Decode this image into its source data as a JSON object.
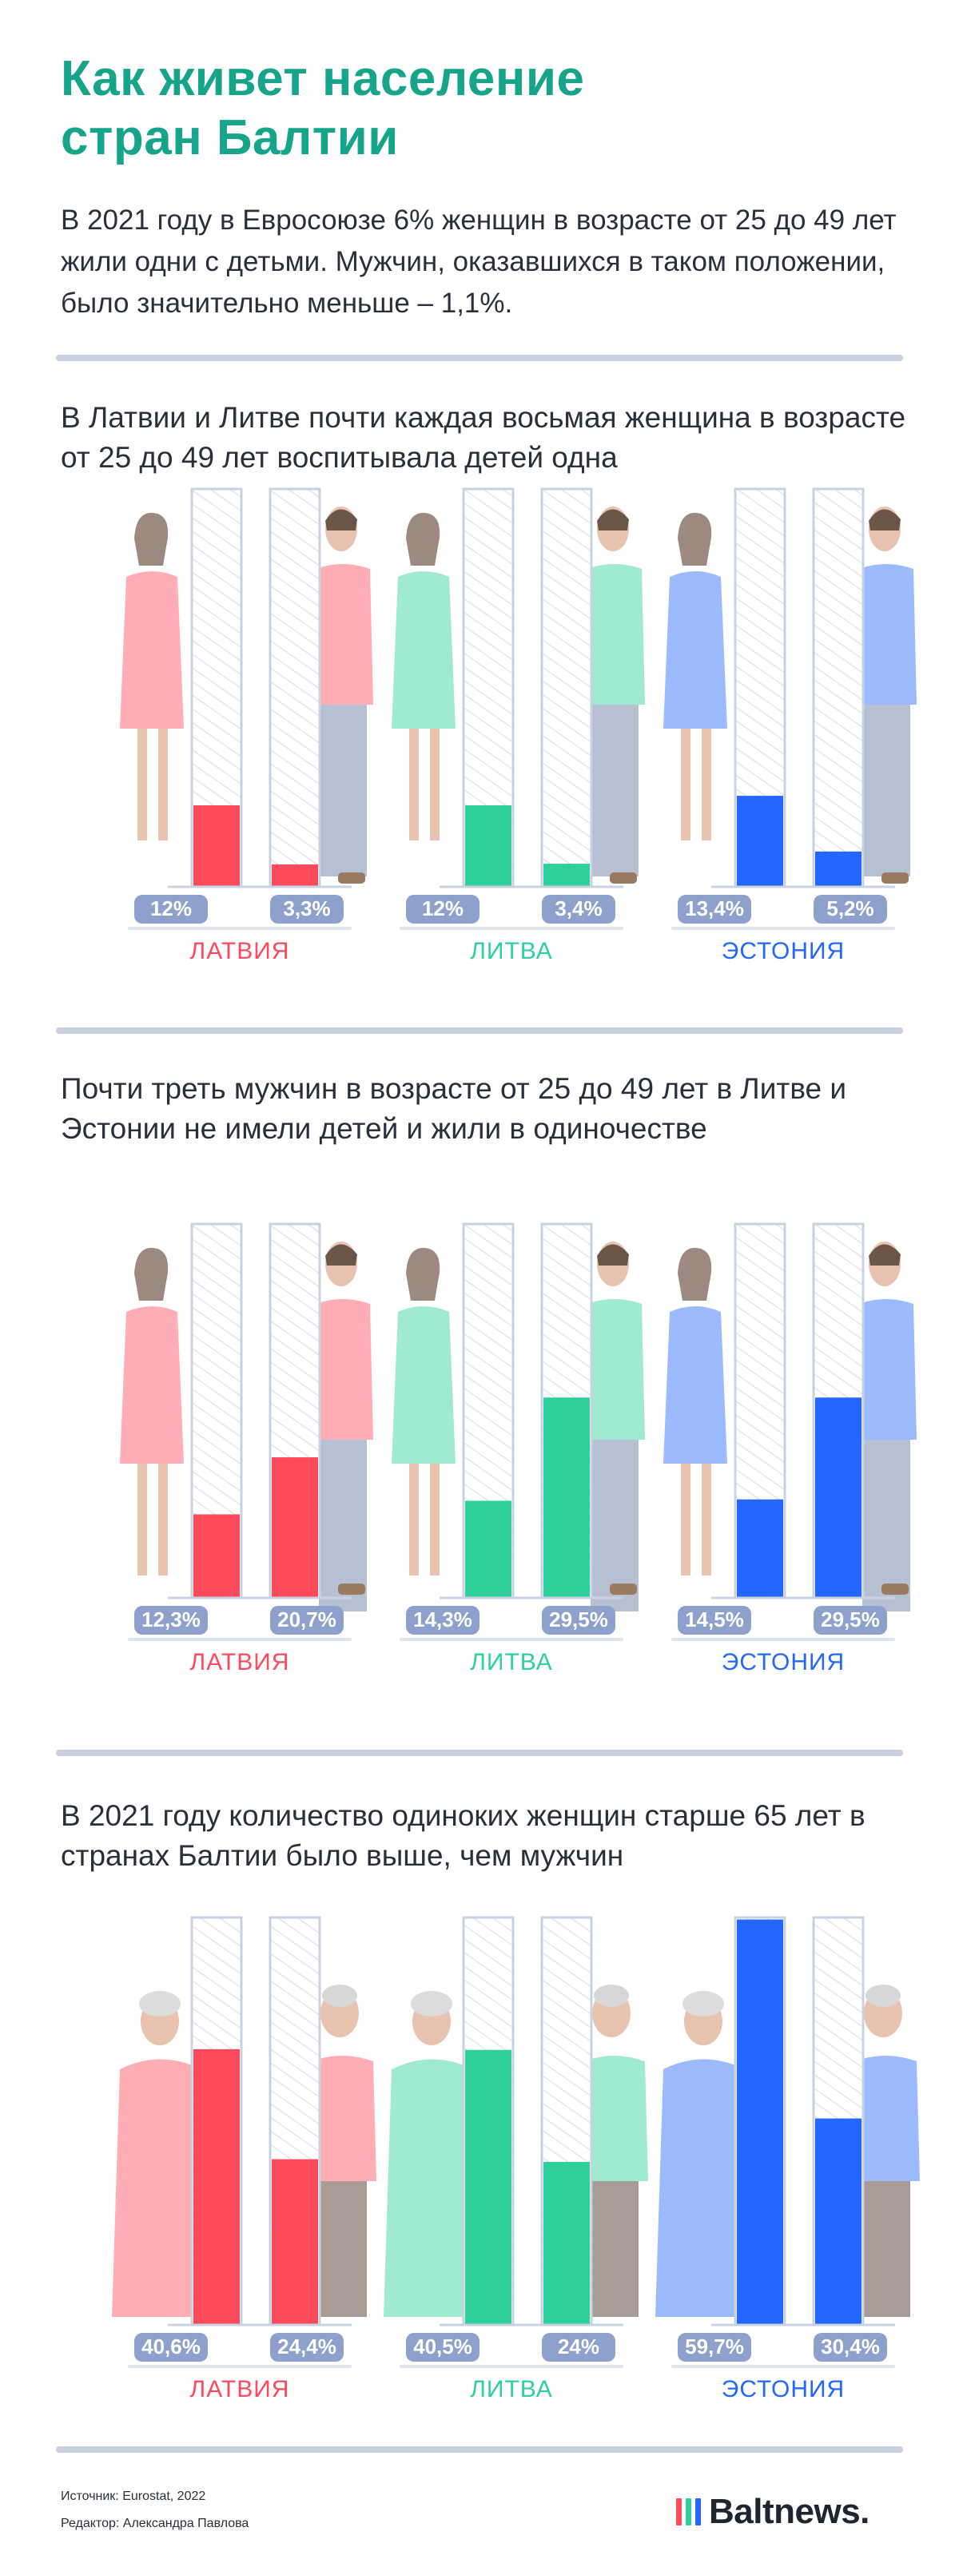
{
  "header": {
    "title_line1": "Как живет население",
    "title_line2": "стран Балтии",
    "intro": "В 2021 году в Евросоюзе 6% женщин в возрасте от 25 до 49 лет жили одни с детьми. Мужчин, оказавшихся в таком положении, было значительно меньше – 1,1%."
  },
  "colors": {
    "latvia": "#ff4a5c",
    "lithuania": "#2fd19a",
    "estonia": "#2367ff",
    "accent_title": "#16a58a",
    "label_pill": "#8da1cc"
  },
  "sections": [
    {
      "title": "В Латвии и Литве почти каждая восьмая женщина в возрасте от 25 до 49 лет воспитывала детей одна",
      "countries": [
        "ЛАТВИЯ",
        "ЛИТВА",
        "ЭСТОНИЯ"
      ],
      "value_labels": [
        [
          "12%",
          "3,3%"
        ],
        [
          "12%",
          "3,4%"
        ],
        [
          "13,4%",
          "5,2%"
        ]
      ]
    },
    {
      "title": "Почти треть мужчин в возрасте от 25 до 49 лет в Литве и Эстонии не имели детей и жили в одиночестве",
      "countries": [
        "ЛАТВИЯ",
        "ЛИТВА",
        "ЭСТОНИЯ"
      ],
      "value_labels": [
        [
          "12,3%",
          "20,7%"
        ],
        [
          "14,3%",
          "29,5%"
        ],
        [
          "14,5%",
          "29,5%"
        ]
      ]
    },
    {
      "title": "В 2021 году количество одиноких женщин старше 65 лет в странах Балтии было выше, чем мужчин",
      "countries": [
        "ЛАТВИЯ",
        "ЛИТВА",
        "ЭСТОНИЯ"
      ],
      "value_labels": [
        [
          "40,6%",
          "24,4%"
        ],
        [
          "40,5%",
          "24%"
        ],
        [
          "59,7%",
          "30,4%"
        ]
      ]
    }
  ],
  "chart_data": [
    {
      "type": "bar",
      "title": "В Латвии и Литве почти каждая восьмая женщина в возрасте от 25 до 49 лет воспитывала детей одна",
      "categories": [
        "ЛАТВИЯ",
        "ЛИТВА",
        "ЭСТОНИЯ"
      ],
      "series": [
        {
          "values": [
            12,
            12,
            13.4
          ]
        },
        {
          "values": [
            3.3,
            3.4,
            5.2
          ]
        }
      ],
      "ylim": [
        0,
        60
      ]
    },
    {
      "type": "bar",
      "title": "Почти треть мужчин в возрасте от 25 до 49 лет в Литве и Эстонии не имели детей и жили в одиночестве",
      "categories": [
        "ЛАТВИЯ",
        "ЛИТВА",
        "ЭСТОНИЯ"
      ],
      "series": [
        {
          "values": [
            12.3,
            14.3,
            14.5
          ]
        },
        {
          "values": [
            20.7,
            29.5,
            29.5
          ]
        }
      ],
      "ylim": [
        0,
        60
      ]
    },
    {
      "type": "bar",
      "title": "В 2021 году количество одиноких женщин старше 65 лет в странах Балтии было выше, чем мужчин",
      "categories": [
        "ЛАТВИЯ",
        "ЛИТВА",
        "ЭСТОНИЯ"
      ],
      "series": [
        {
          "values": [
            40.6,
            40.5,
            59.7
          ]
        },
        {
          "values": [
            24.4,
            24,
            30.4
          ]
        }
      ],
      "ylim": [
        0,
        60
      ]
    }
  ],
  "footer": {
    "source": "Источник: Eurostat, 2022",
    "editor": "Редактор: Александра Павлова",
    "logo_text": "Baltnews.",
    "logo_bar_colors": [
      "#ff4a5c",
      "#2fd19a",
      "#2367ff"
    ]
  }
}
